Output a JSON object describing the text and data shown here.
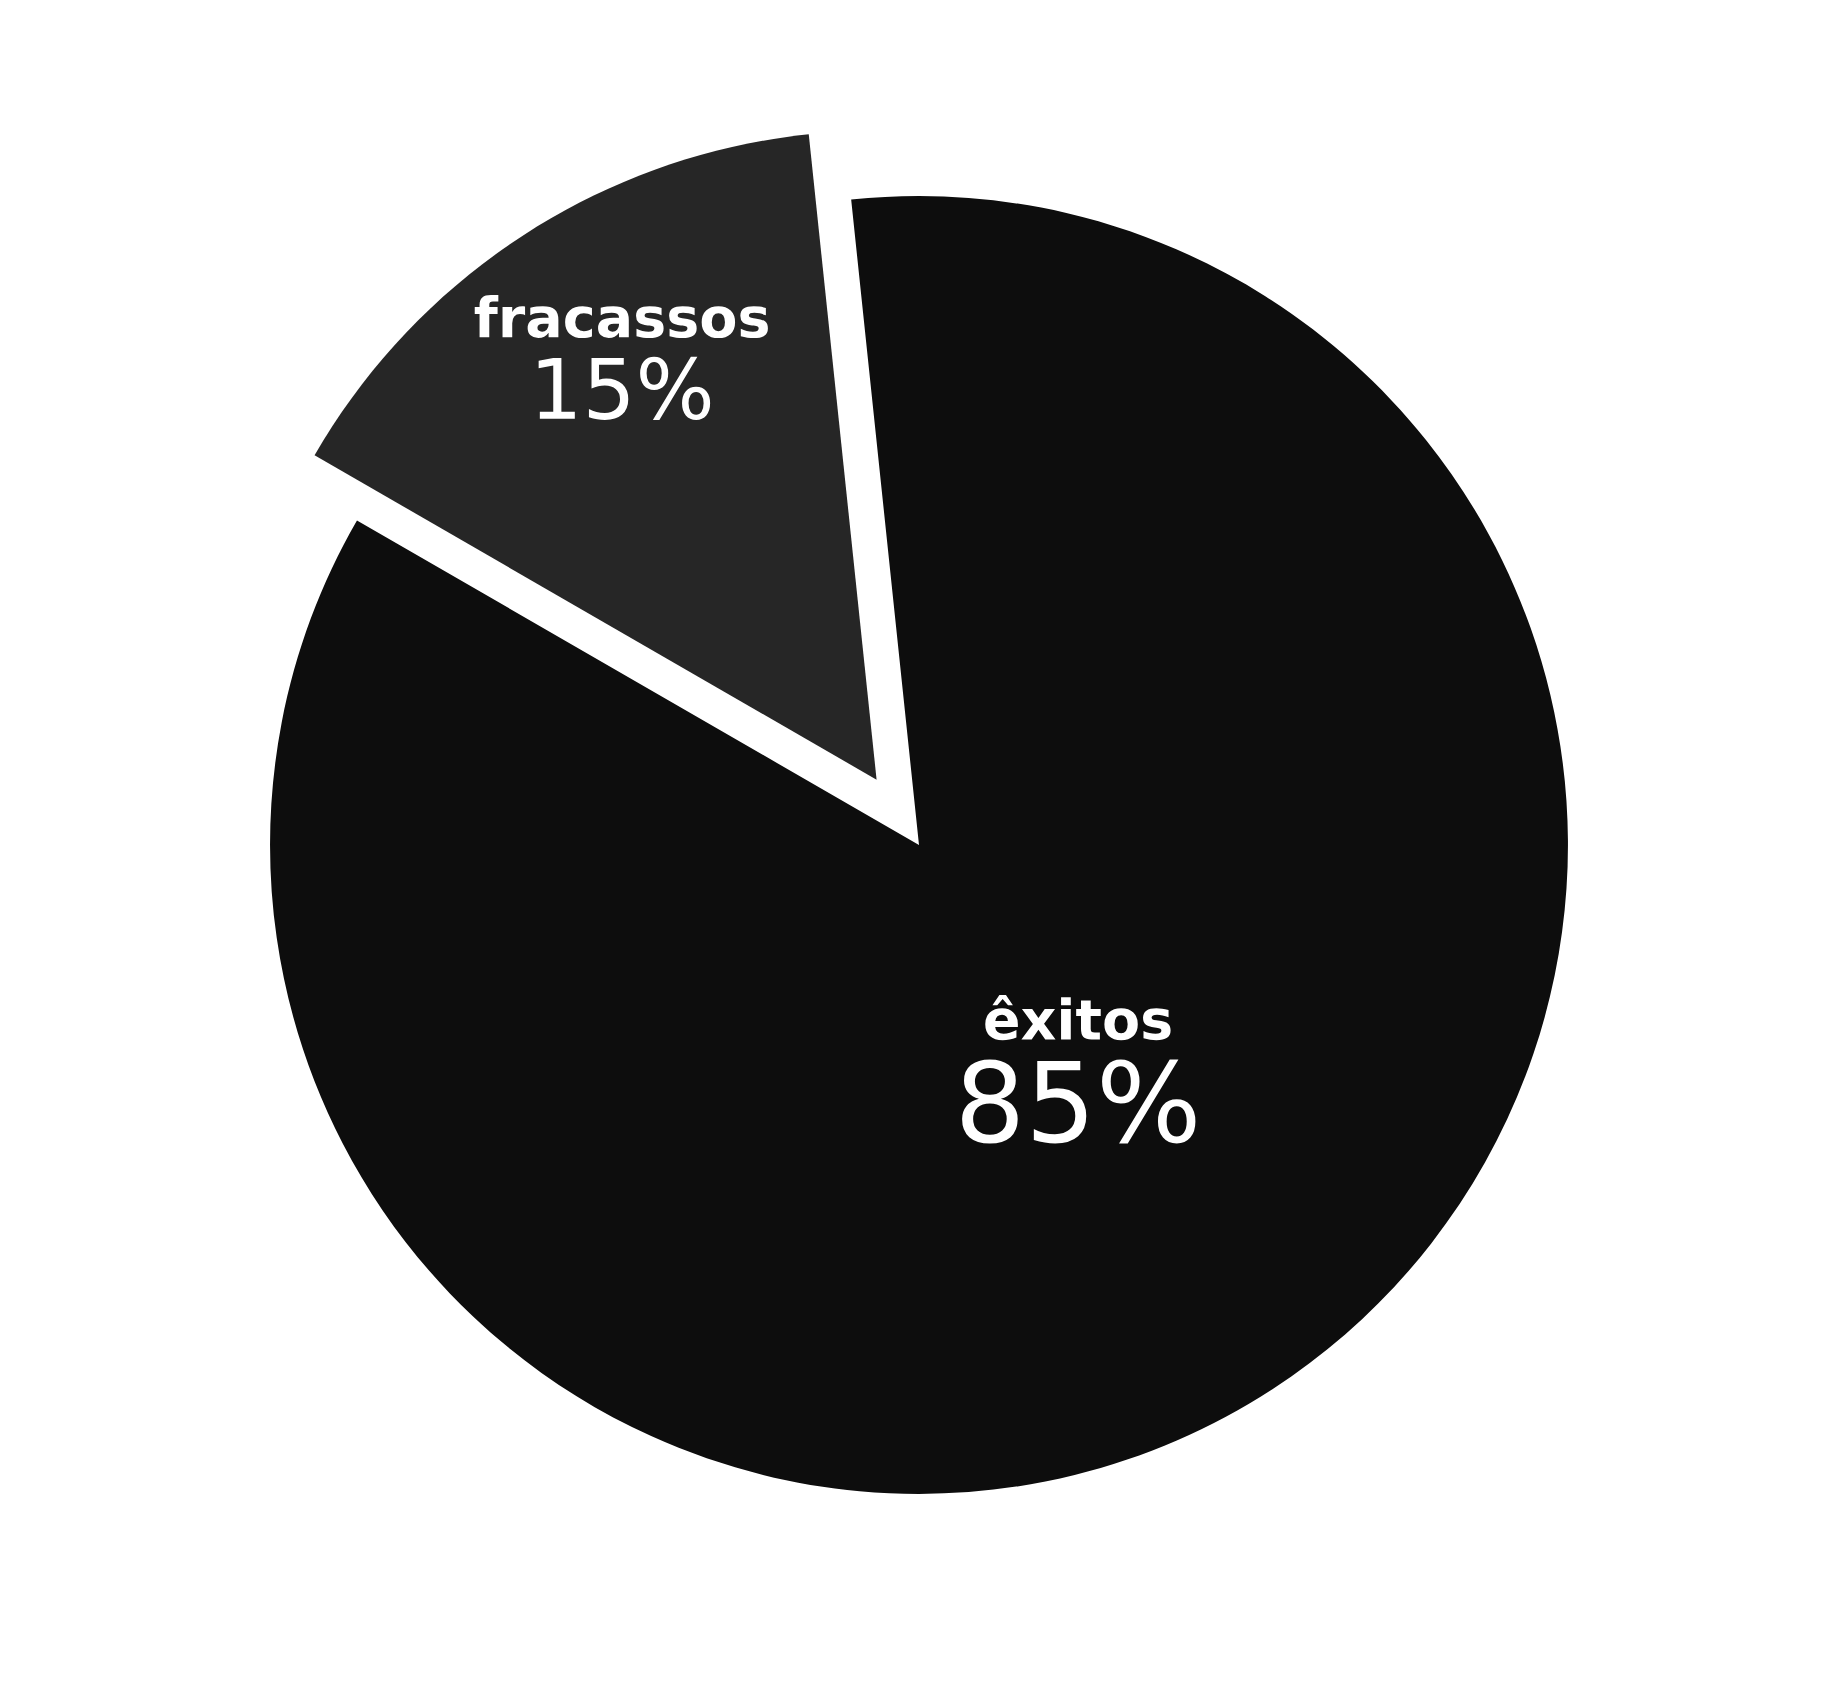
{
  "chart_data": {
    "type": "pie",
    "categories": [
      "fracassos",
      "êxitos"
    ],
    "values": [
      15,
      85
    ],
    "colors": [
      "#262626",
      "#0d0d0d"
    ],
    "value_labels": [
      "15%",
      "85%"
    ],
    "legend": false
  }
}
